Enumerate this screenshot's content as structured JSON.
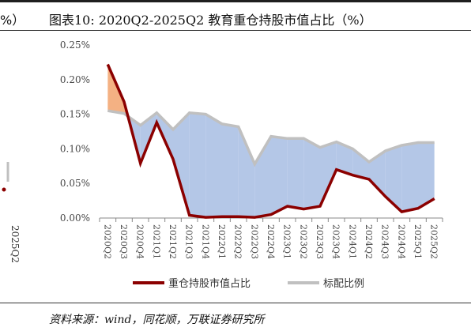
{
  "title_fragment_left": "%）",
  "title": "图表10:  2020Q2-2025Q2 教育重仓持股市值占比（%）",
  "source": "资料来源：wind，同花顺，万联证券研究所",
  "left_fragment": {
    "tick_label": "2025Q2"
  },
  "chart_data": {
    "type": "line",
    "title": "图表10:  2020Q2-2025Q2 教育重仓持股市值占比（%）",
    "xlabel": "",
    "ylabel": "",
    "ylim": [
      0,
      0.25
    ],
    "yticks": [
      "0.00%",
      "0.05%",
      "0.10%",
      "0.15%",
      "0.20%",
      "0.25%"
    ],
    "ytick_values": [
      0,
      0.05,
      0.1,
      0.15,
      0.2,
      0.25
    ],
    "categories": [
      "2020Q2",
      "2020Q3",
      "2020Q4",
      "2021Q1",
      "2021Q2",
      "2021Q3",
      "2021Q4",
      "2022Q1",
      "2022Q2",
      "2022Q3",
      "2022Q4",
      "2023Q1",
      "2023Q2",
      "2023Q3",
      "2023Q4",
      "2024Q1",
      "2024Q2",
      "2024Q3",
      "2024Q4",
      "2025Q1",
      "2025Q2"
    ],
    "series": [
      {
        "name": "重仓持股市值占比",
        "color": "#8b0000",
        "values": [
          0.222,
          0.168,
          0.079,
          0.138,
          0.085,
          0.004,
          0.001,
          0.002,
          0.002,
          0.001,
          0.005,
          0.017,
          0.013,
          0.017,
          0.07,
          0.062,
          0.056,
          0.031,
          0.009,
          0.014,
          0.028
        ]
      },
      {
        "name": "标配比例",
        "color": "#c0c0c0",
        "values": [
          0.155,
          0.151,
          0.134,
          0.152,
          0.128,
          0.152,
          0.15,
          0.136,
          0.132,
          0.078,
          0.118,
          0.115,
          0.115,
          0.102,
          0.11,
          0.1,
          0.081,
          0.097,
          0.105,
          0.109,
          0.109
        ]
      }
    ],
    "fill_colors": {
      "over": "#f4b183",
      "under": "#b4c7e7"
    },
    "legend_position": "bottom",
    "grid": false
  }
}
